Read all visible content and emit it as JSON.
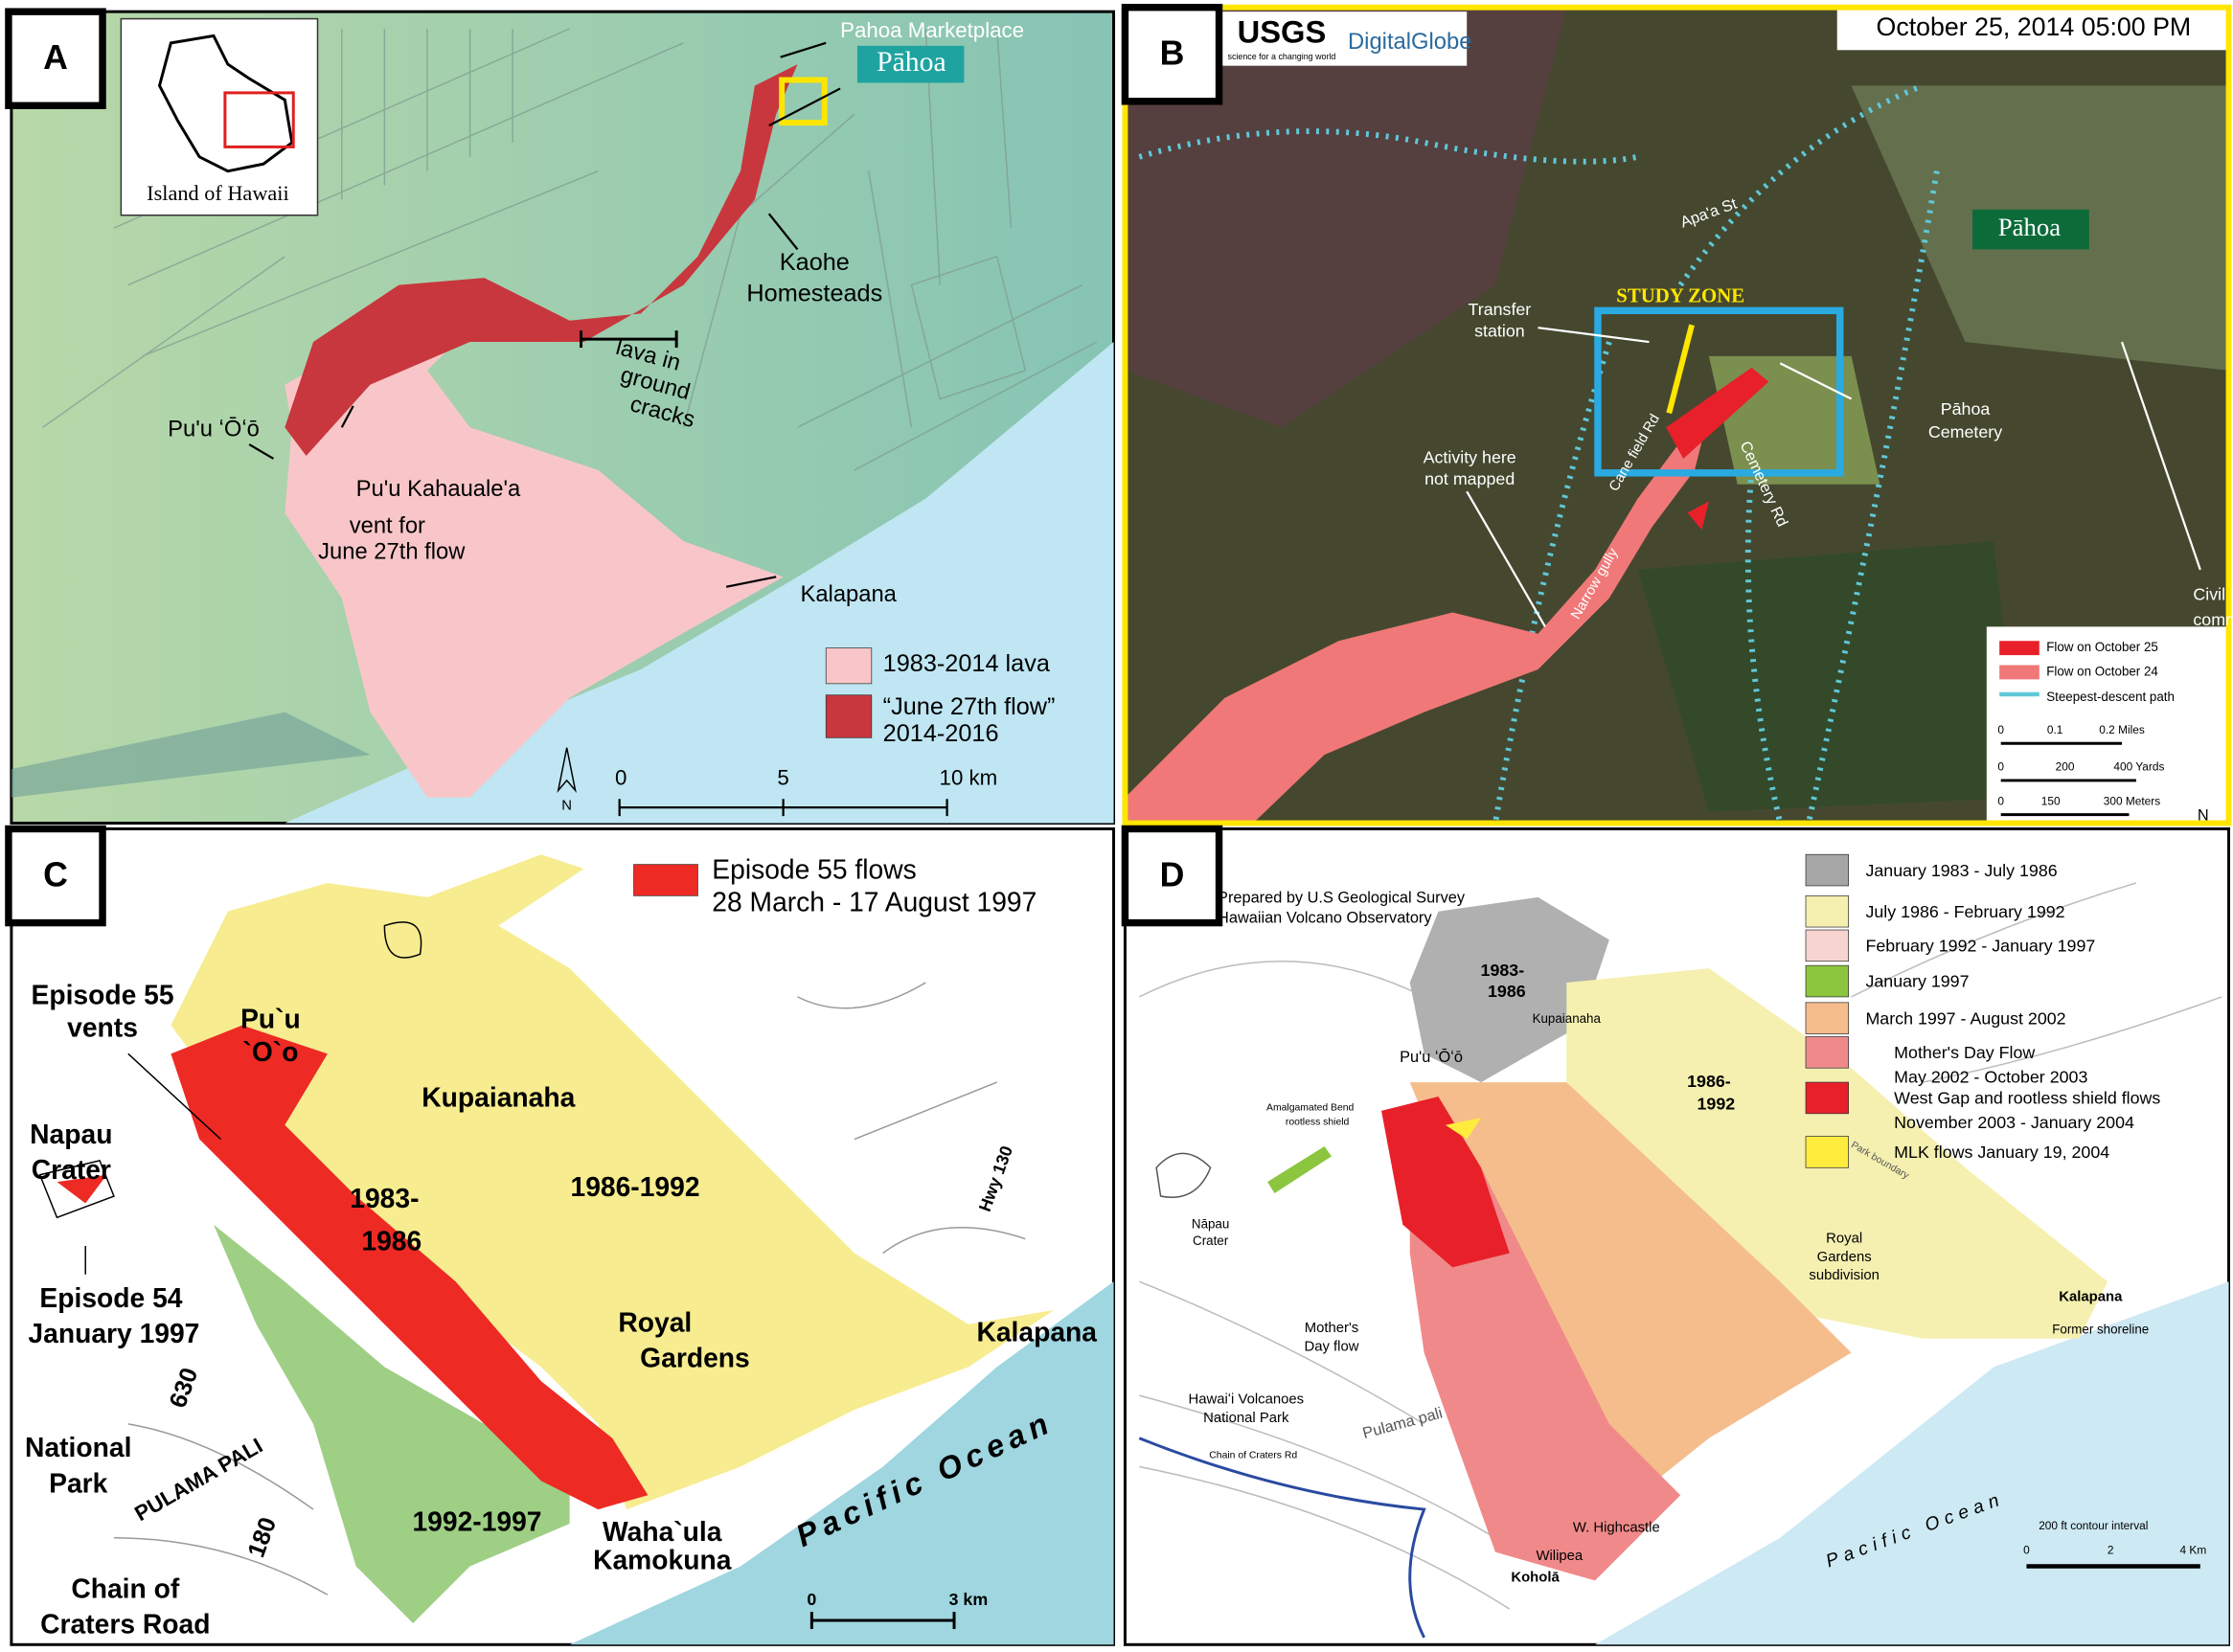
{
  "panels": [
    {
      "label": "A",
      "labels": [
        "Island of Hawaii",
        "Pahoa Marketplace",
        "Pāhoa",
        "Kaohe",
        "Homesteads",
        "lava in",
        "ground",
        "cracks",
        "Pu'u ʻŌʻō",
        "Pu'u Kahauale'a",
        "vent for",
        "June 27th flow",
        "Kalapana",
        "N",
        "0",
        "5",
        "10 km"
      ],
      "legend": [
        {
          "lines": [
            "1983-2014 lava"
          ],
          "color": "#f8c6c9"
        },
        {
          "lines": [
            "“June 27th flow”",
            "2014-2016"
          ],
          "color": "#c8373d"
        }
      ]
    },
    {
      "label": "B",
      "labels": [
        "USGS",
        "science for a changing world",
        "DigitalGlobe",
        "October 25, 2014 05:00 PM",
        "Apa'a St",
        "Pāhoa",
        "STUDY ZONE",
        "Transfer",
        "station",
        "Pāhoa",
        "Cemetery",
        "Activity here",
        "not mapped",
        "Cane field Rd",
        "Cemetery Rd",
        "Narrow gully",
        "Civil D",
        "comma",
        "0",
        "0.1",
        "0.2 Miles",
        "0",
        "200",
        "400 Yards",
        "0",
        "150",
        "300 Meters",
        "N"
      ],
      "legend": [
        {
          "lines": [
            "Flow on October 25"
          ],
          "color": "#e8202a"
        },
        {
          "lines": [
            "Flow on October 24"
          ],
          "color": "#f07878"
        },
        {
          "lines": [
            "Steepest-descent path"
          ],
          "color": "#5fc8d8"
        }
      ]
    },
    {
      "label": "C",
      "labels": [
        "Episode 55",
        "vents",
        "Pu`u",
        "`O`o",
        "Kupaianaha",
        "Napau",
        "Crater",
        "1983-",
        "1986",
        "1986-1992",
        "Hwy 130",
        "Episode 54",
        "January 1997",
        "Royal",
        "Gardens",
        "Kalapana",
        "630",
        "National",
        "Park",
        "PULAMA PALI",
        "180",
        "1992-1997",
        "Waha`ula",
        "Kamokuna",
        "Pacific Ocean",
        "Chain of",
        "Craters Road",
        "0",
        "3 km"
      ],
      "legend": [
        {
          "lines": [
            "Episode 55 flows",
            "28 March - 17 August 1997"
          ],
          "color": "#ee2a24"
        }
      ]
    },
    {
      "label": "D",
      "labels": [
        "Prepared by U.S Geological Survey",
        "Hawaiian Volcano Observatory",
        "1983-",
        "1986",
        "Kupaianaha",
        "Pu'u ʻŌʻō",
        "1986-",
        "1992",
        "Amalgamated Bend",
        "rootless shield",
        "Nāpau",
        "Crater",
        "Royal",
        "Gardens",
        "subdivision",
        "Mother's",
        "Day flow",
        "Hawaiʻi Volcanoes",
        "National Park",
        "Pulama pali",
        "Kalapana",
        "Former shoreline",
        "Pacific Ocean",
        "W. Highcastle",
        "Wilipea",
        "Koholā",
        "200 ft contour interval",
        "0",
        "2",
        "4 Km",
        "Park boundary",
        "Chain of Craters Rd"
      ],
      "legend": [
        {
          "lines": [
            "January 1983 - July 1986"
          ],
          "color": "#a6a6a6"
        },
        {
          "lines": [
            "July 1986 - February 1992"
          ],
          "color": "#f5f0b0"
        },
        {
          "lines": [
            "February 1992 - January 1997"
          ],
          "color": "#f7d4cf"
        },
        {
          "lines": [
            "January 1997"
          ],
          "color": "#8cc63f"
        },
        {
          "lines": [
            "March 1997 - August 2002"
          ],
          "color": "#f6bd8c"
        },
        {
          "lines": [
            "Mother's Day Flow",
            "May 2002 - October 2003"
          ],
          "color": "#f08a8a"
        },
        {
          "lines": [
            "West Gap and rootless shield flows",
            "November 2003 - January 2004"
          ],
          "color": "#e8202a"
        },
        {
          "lines": [
            "MLK flows January 19, 2004"
          ],
          "color": "#ffec3d"
        }
      ]
    }
  ]
}
